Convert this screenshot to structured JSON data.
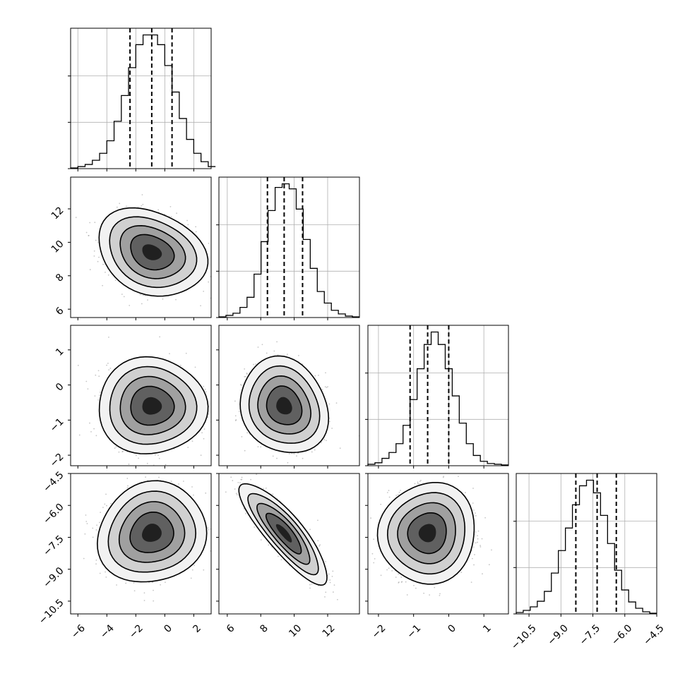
{
  "chart_data": {
    "type": "corner",
    "parameters": 4,
    "axes": [
      {
        "ticks": [
          -6,
          -4,
          -2,
          0,
          2
        ],
        "tick_labels": [
          "−6",
          "−4",
          "−2",
          "0",
          "2"
        ],
        "range": [
          -6.5,
          3.2
        ]
      },
      {
        "ticks": [
          6,
          8,
          10,
          12
        ],
        "tick_labels": [
          "6",
          "8",
          "10",
          "12"
        ],
        "range": [
          5.5,
          13.9
        ]
      },
      {
        "ticks": [
          -2,
          -1,
          0,
          1
        ],
        "tick_labels": [
          "−2",
          "−1",
          "0",
          "1"
        ],
        "range": [
          -2.3,
          1.7
        ]
      },
      {
        "ticks": [
          -10.5,
          -9.0,
          -7.5,
          -6.0,
          -4.5
        ],
        "tick_labels": [
          "−10.5",
          "−9.0",
          "−7.5",
          "−6.0",
          "−4.5"
        ],
        "range": [
          -11.1,
          -4.5
        ]
      }
    ],
    "quantiles": [
      [
        -2.4,
        -0.9,
        0.5
      ],
      [
        8.4,
        9.4,
        10.5
      ],
      [
        -1.1,
        -0.6,
        0.0
      ],
      [
        -8.3,
        -7.3,
        -6.4
      ]
    ],
    "histograms": [
      {
        "bin_width": 0.5,
        "bins_start": -6.5,
        "counts": [
          1,
          3,
          6,
          12,
          22,
          40,
          68,
          105,
          145,
          178,
          192,
          192,
          178,
          148,
          110,
          72,
          42,
          22,
          10,
          3
        ]
      },
      {
        "bin_width": 0.42,
        "bins_start": 5.5,
        "counts": [
          1,
          3,
          6,
          14,
          28,
          60,
          105,
          148,
          180,
          185,
          178,
          150,
          108,
          68,
          36,
          20,
          10,
          5,
          2,
          1
        ]
      },
      {
        "bin_width": 0.2,
        "bins_start": -2.3,
        "counts": [
          2,
          4,
          10,
          18,
          30,
          55,
          90,
          132,
          165,
          182,
          165,
          132,
          95,
          58,
          30,
          14,
          6,
          3,
          2,
          1
        ]
      },
      {
        "bin_width": 0.33,
        "bins_start": -11.1,
        "counts": [
          2,
          5,
          10,
          18,
          32,
          58,
          90,
          122,
          155,
          182,
          190,
          172,
          140,
          100,
          62,
          34,
          17,
          8,
          3,
          1
        ]
      }
    ],
    "pairs": [
      {
        "row": 1,
        "col": 0,
        "mean": [
          -0.9,
          9.4
        ],
        "sd": [
          1.5,
          1.05
        ],
        "rho": -0.25
      },
      {
        "row": 2,
        "col": 0,
        "mean": [
          -0.9,
          -0.6
        ],
        "sd": [
          1.5,
          0.55
        ],
        "rho": 0.0
      },
      {
        "row": 2,
        "col": 1,
        "mean": [
          9.4,
          -0.6
        ],
        "sd": [
          1.05,
          0.55
        ],
        "rho": -0.15
      },
      {
        "row": 3,
        "col": 0,
        "mean": [
          -0.9,
          -7.3
        ],
        "sd": [
          1.5,
          0.95
        ],
        "rho": 0.1
      },
      {
        "row": 3,
        "col": 1,
        "mean": [
          9.4,
          -7.3
        ],
        "sd": [
          1.05,
          0.95
        ],
        "rho": -0.85
      },
      {
        "row": 3,
        "col": 2,
        "mean": [
          -0.6,
          -7.3
        ],
        "sd": [
          0.55,
          0.95
        ],
        "rho": 0.05
      }
    ],
    "contour_levels_sigma": [
      1.0,
      1.5,
      2.0,
      2.5
    ],
    "grid": true,
    "colors": {
      "line": "#000000",
      "grid": "#b0b0b0",
      "points": "#808080"
    }
  }
}
